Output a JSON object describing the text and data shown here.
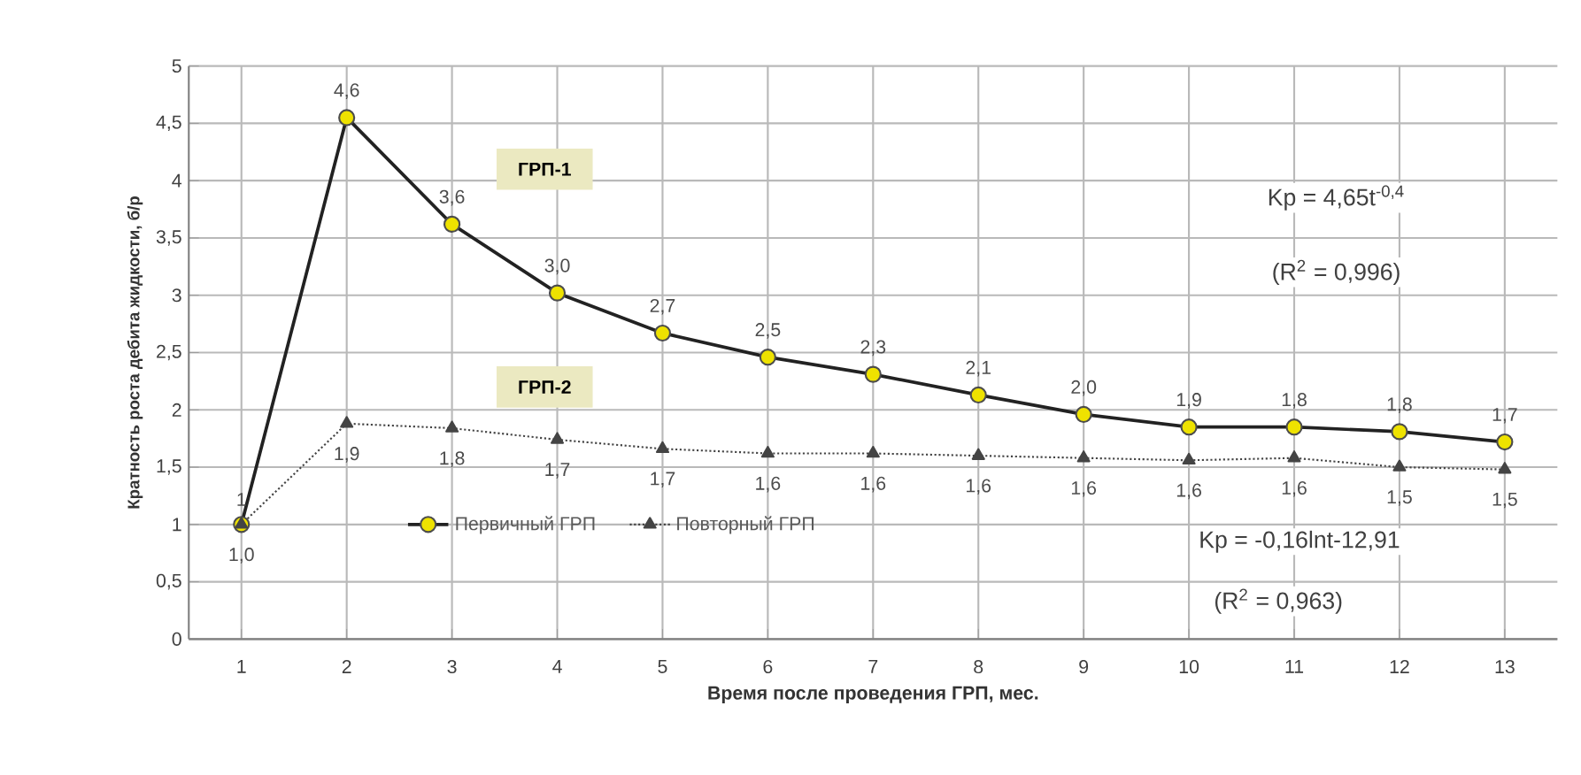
{
  "chart_data": {
    "type": "line",
    "xlabel": "Время после проведения ГРП, мес.",
    "ylabel": "Кратность роста дебита жидкости, б/р",
    "categories": [
      "1",
      "2",
      "3",
      "4",
      "5",
      "6",
      "7",
      "8",
      "9",
      "10",
      "11",
      "12",
      "13"
    ],
    "series": [
      {
        "name": "Первичный ГРП",
        "color": "#222222",
        "marker": "circle",
        "line_style": "solid",
        "values": [
          1.0,
          4.55,
          3.62,
          3.02,
          2.67,
          2.46,
          2.31,
          2.13,
          1.96,
          1.85,
          1.85,
          1.81,
          1.72
        ],
        "value_labels": [
          "1",
          "4,6",
          "3,6",
          "3,0",
          "2,7",
          "2,5",
          "2,3",
          "2,1",
          "2,0",
          "1,9",
          "1,8",
          "1,8",
          "1,7"
        ]
      },
      {
        "name": "Повторный ГРП",
        "color": "#444444",
        "marker": "triangle",
        "line_style": "dotted",
        "values": [
          1.0,
          1.88,
          1.84,
          1.74,
          1.66,
          1.62,
          1.62,
          1.6,
          1.58,
          1.56,
          1.58,
          1.5,
          1.48
        ],
        "value_labels": [
          "1,0",
          "1,9",
          "1,8",
          "1,7",
          "1,7",
          "1,6",
          "1,6",
          "1,6",
          "1,6",
          "1,6",
          "1,6",
          "1,5",
          "1,5"
        ]
      }
    ],
    "ylim": [
      0,
      5
    ],
    "yticks": [
      0,
      {
        "value": 0.5,
        "label": "0,5"
      },
      1,
      {
        "value": 1.5,
        "label": "1,5"
      },
      2,
      {
        "value": 2.5,
        "label": "2,5"
      },
      3,
      {
        "value": 3.5,
        "label": "3,5"
      },
      4,
      {
        "value": 4.5,
        "label": "4,5"
      },
      5
    ],
    "grid": true,
    "legend": "bottom",
    "annotations": [
      "ГРП-1",
      "ГРП-2",
      "Kp = 4,65t$^{-0,4}$",
      "(R$^{2}$ = 0,996)",
      "Kp = -0,16lnt-12,91",
      "(R$^{2}$ = 0,963)"
    ]
  }
}
